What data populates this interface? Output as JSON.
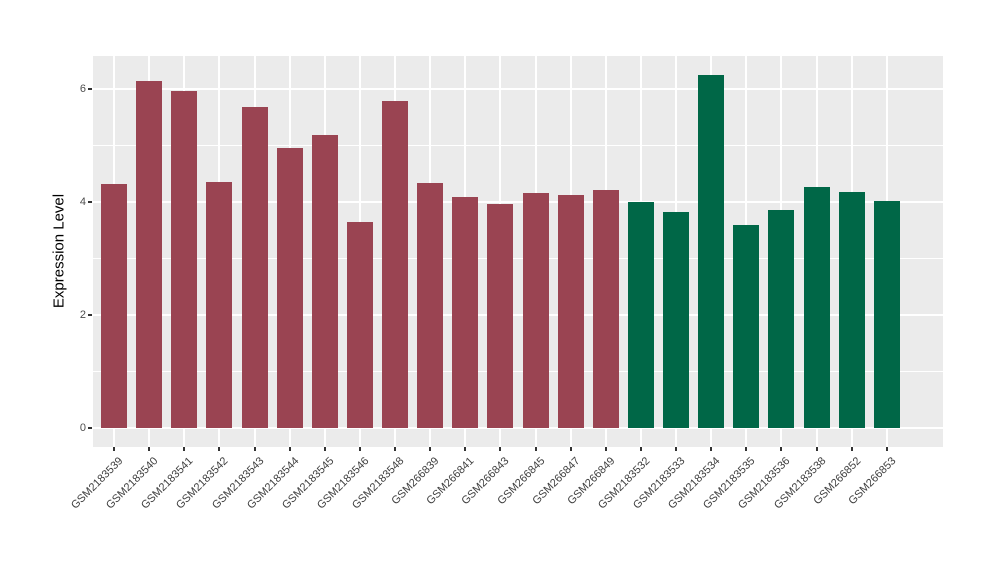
{
  "chart_data": {
    "type": "bar",
    "title": "",
    "xlabel": "",
    "ylabel": "Expression Level",
    "ylim": [
      0,
      6.58
    ],
    "y_ticks": [
      0,
      2,
      4,
      6
    ],
    "y_minor_ticks": [
      1,
      3,
      5
    ],
    "grid": "on",
    "legend_position": "none",
    "panel_background": "#EBEBEB",
    "gridline_color": "#FFFFFF",
    "tick_color": "#333333",
    "axis_text_color": "#4D4D4D",
    "group_colors": {
      "group_1": "#9A4452",
      "group_2": "#006747"
    },
    "categories": [
      "GSM2183539",
      "GSM2183540",
      "GSM2183541",
      "GSM2183542",
      "GSM2183543",
      "GSM2183544",
      "GSM2183545",
      "GSM2183546",
      "GSM2183548",
      "GSM266839",
      "GSM266841",
      "GSM266843",
      "GSM266845",
      "GSM266847",
      "GSM266849",
      "GSM2183532",
      "GSM2183533",
      "GSM2183534",
      "GSM2183535",
      "GSM2183536",
      "GSM2183538",
      "GSM266852",
      "GSM266853"
    ],
    "values": [
      4.32,
      6.14,
      5.96,
      4.35,
      5.68,
      4.95,
      5.19,
      3.65,
      5.79,
      4.34,
      4.09,
      3.96,
      4.16,
      4.12,
      4.21,
      4.0,
      3.82,
      6.25,
      3.59,
      3.86,
      4.27,
      4.18,
      4.02
    ],
    "colors": [
      "#9A4452",
      "#9A4452",
      "#9A4452",
      "#9A4452",
      "#9A4452",
      "#9A4452",
      "#9A4452",
      "#9A4452",
      "#9A4452",
      "#9A4452",
      "#9A4452",
      "#9A4452",
      "#9A4452",
      "#9A4452",
      "#9A4452",
      "#006747",
      "#006747",
      "#006747",
      "#006747",
      "#006747",
      "#006747",
      "#006747",
      "#006747"
    ]
  }
}
